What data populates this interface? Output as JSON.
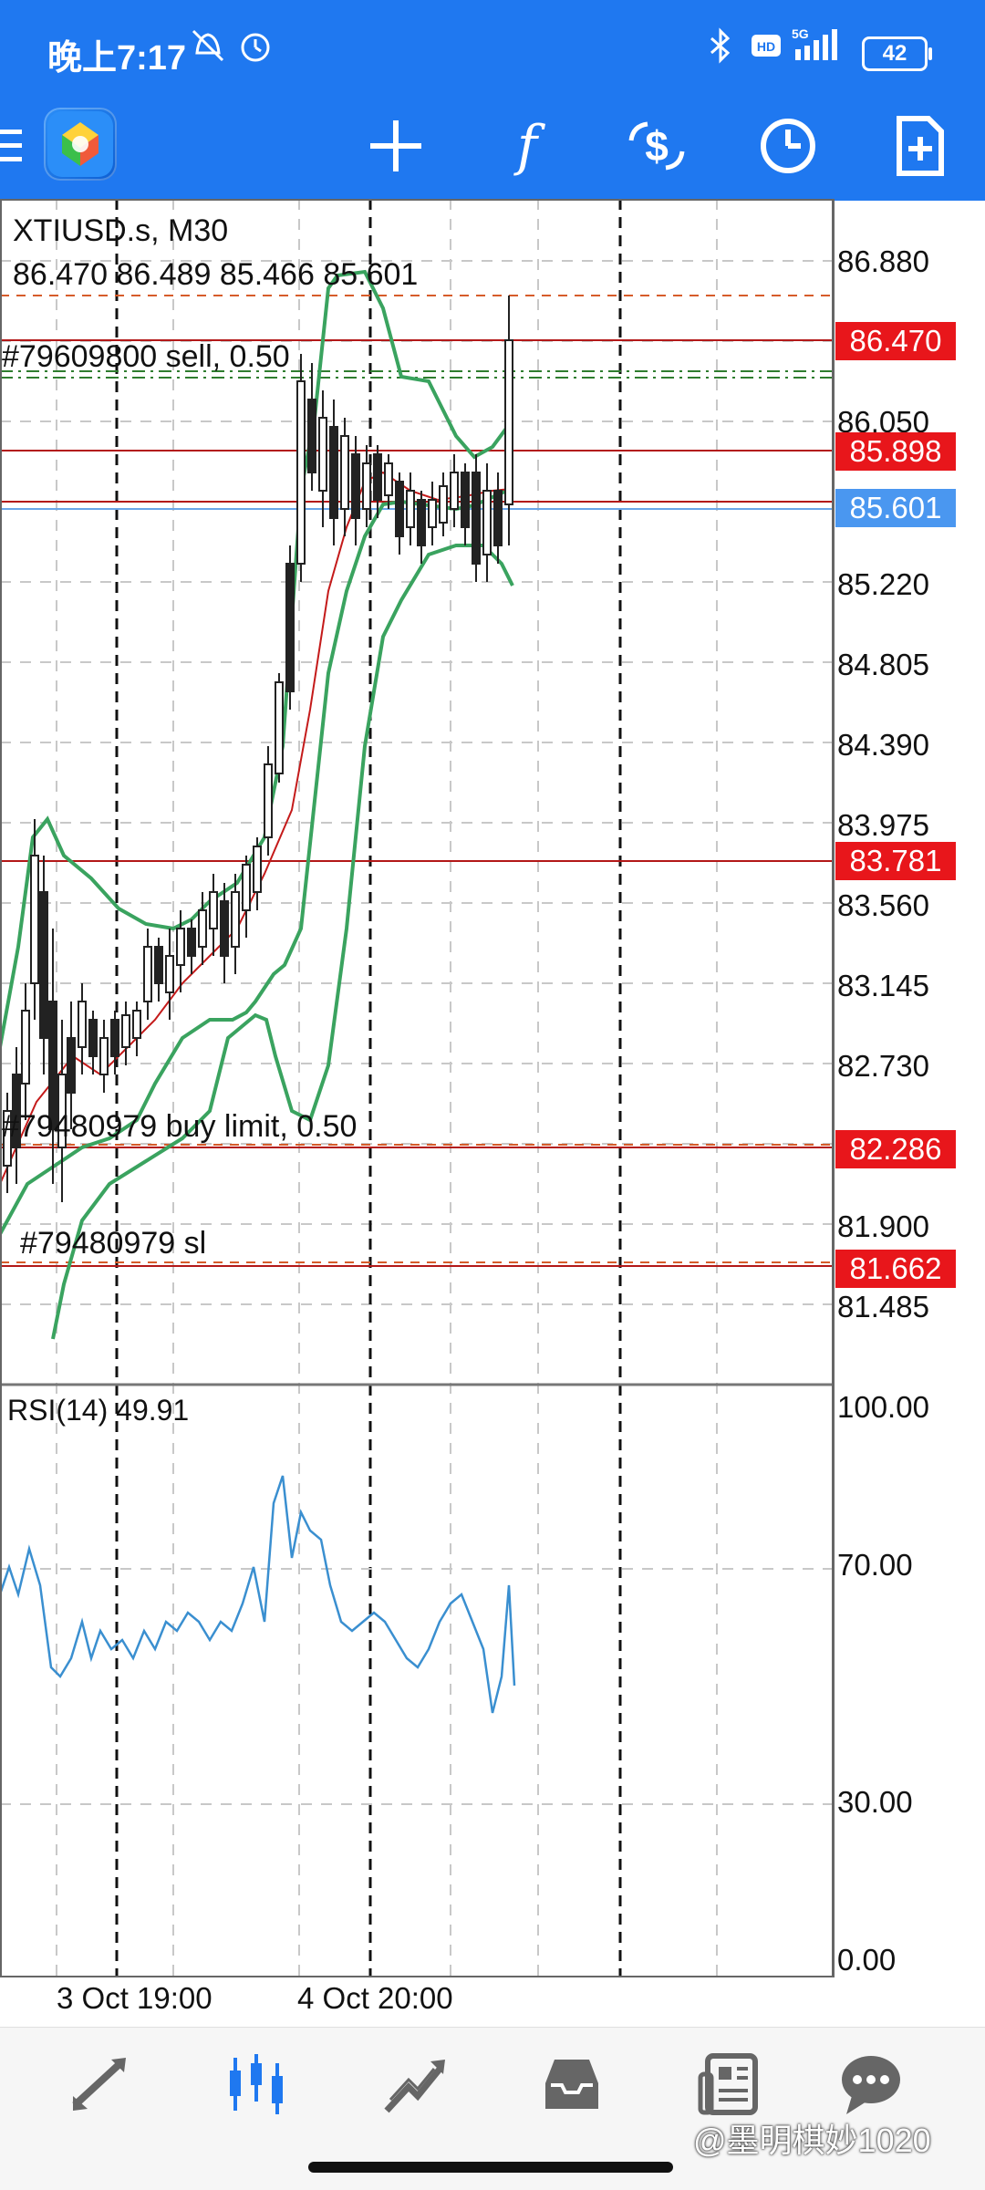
{
  "status_bar": {
    "time": "晚上7:17",
    "battery": "42",
    "network": "5G",
    "icons": [
      "dnd-off-icon",
      "alarm-icon",
      "bluetooth-icon",
      "hd-icon",
      "signal-icon",
      "battery-icon"
    ]
  },
  "toolbar": {
    "icons": [
      "menu-icon",
      "app-logo",
      "crosshair-icon",
      "indicators-icon",
      "trade-icon",
      "timeframe-icon",
      "new-order-icon"
    ]
  },
  "chart": {
    "symbol": "XTIUSD.s, M30",
    "ohlc": "86.470 86.489 85.466 85.601",
    "orders": {
      "sell": "#79609800 sell, 0.50",
      "buy_limit": "#79480979 buy limit, 0.50",
      "sl": "#79480979 sl"
    },
    "price_axis": [
      "86.880",
      "86.050",
      "85.220",
      "84.805",
      "84.390",
      "83.975",
      "83.560",
      "83.145",
      "82.730",
      "81.900",
      "81.485"
    ],
    "price_tags": [
      {
        "value": "86.470",
        "color": "#e8161b"
      },
      {
        "value": "85.898",
        "color": "#e8161b"
      },
      {
        "value": "85.601",
        "color": "#4a97f0"
      },
      {
        "value": "83.781",
        "color": "#e8161b"
      },
      {
        "value": "82.286",
        "color": "#e8161b"
      },
      {
        "value": "81.662",
        "color": "#e8161b"
      }
    ],
    "time_labels": [
      "3 Oct 19:00",
      "4 Oct 20:00"
    ],
    "rsi": {
      "title": "RSI(14) 49.91",
      "axis": [
        "100.00",
        "70.00",
        "30.00",
        "0.00"
      ]
    },
    "colors": {
      "bollinger": "#3aa35f",
      "ma": "#c41a1a",
      "rsi": "#3a8fd0",
      "order_line": "#b31818",
      "tp_line": "#2f7d2f"
    }
  },
  "bottom_nav": {
    "items": [
      "quotes-icon",
      "chart-icon",
      "trade-icon",
      "history-icon",
      "news-icon",
      "chat-icon"
    ]
  },
  "watermark": "@墨明棋妙1020"
}
